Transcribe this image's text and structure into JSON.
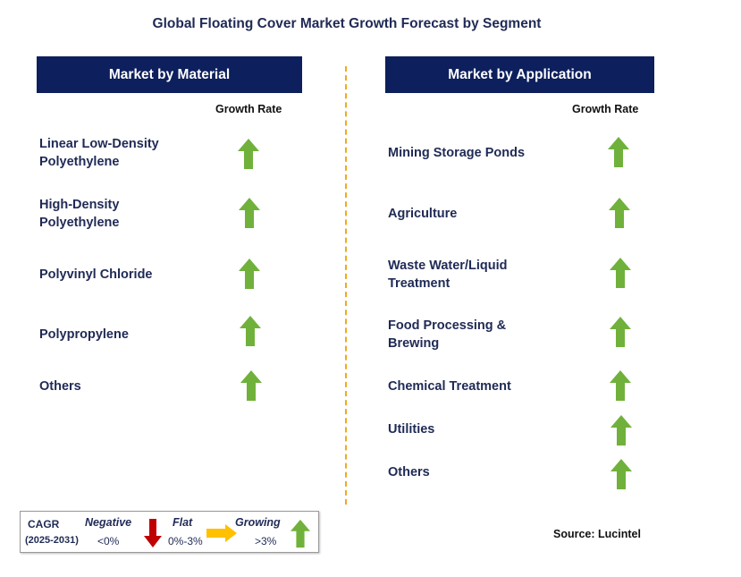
{
  "title": "Global Floating Cover Market Growth Forecast by Segment",
  "left_panel": {
    "header": "Market by Material",
    "column_label": "Growth Rate",
    "items": [
      {
        "label": "Linear Low-Density Polyethylene",
        "growth": "Growing"
      },
      {
        "label": "High-Density Polyethylene",
        "growth": "Growing"
      },
      {
        "label": "Polyvinyl Chloride",
        "growth": "Growing"
      },
      {
        "label": "Polypropylene",
        "growth": "Growing"
      },
      {
        "label": "Others",
        "growth": "Growing"
      }
    ]
  },
  "right_panel": {
    "header": "Market by Application",
    "column_label": "Growth Rate",
    "items": [
      {
        "label": "Mining Storage Ponds",
        "growth": "Growing"
      },
      {
        "label": "Agriculture",
        "growth": "Growing"
      },
      {
        "label": "Waste Water/Liquid Treatment",
        "growth": "Growing"
      },
      {
        "label": "Food Processing & Brewing",
        "growth": "Growing"
      },
      {
        "label": "Chemical Treatment",
        "growth": "Growing"
      },
      {
        "label": "Utilities",
        "growth": "Growing"
      },
      {
        "label": "Others",
        "growth": "Growing"
      }
    ]
  },
  "legend": {
    "cagr_label": "CAGR",
    "period": "(2025-2031)",
    "negative": {
      "label": "Negative",
      "range": "<0%",
      "color": "#c00000"
    },
    "flat": {
      "label": "Flat",
      "range": "0%-3%",
      "color": "#ffc000"
    },
    "growing": {
      "label": "Growing",
      "range": ">3%",
      "color": "#70b13b"
    }
  },
  "source": "Source: Lucintel"
}
